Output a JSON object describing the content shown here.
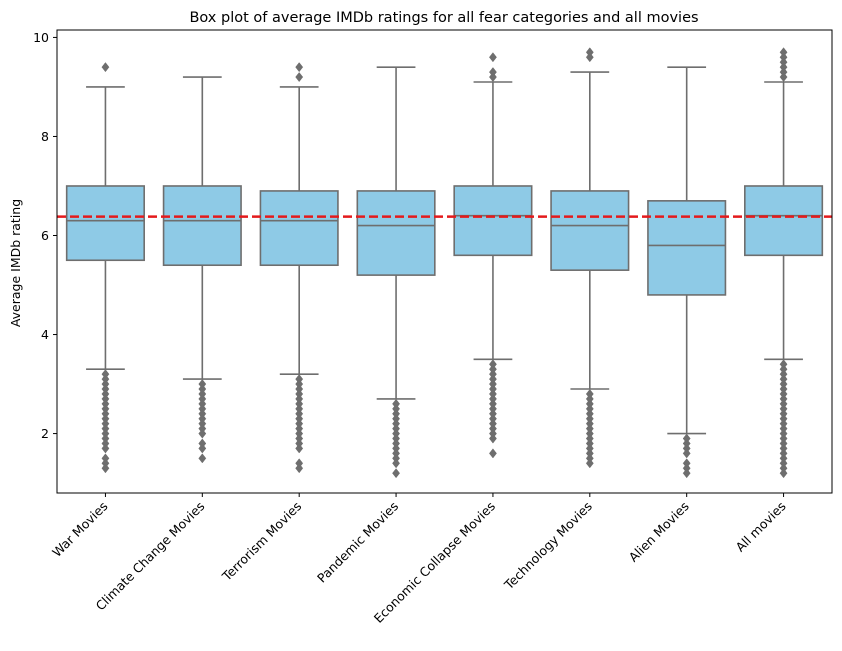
{
  "chart_data": {
    "type": "box",
    "title": "Box plot of average IMDb ratings for all fear categories and all movies",
    "xlabel": "",
    "ylabel": "Average IMDb rating",
    "ylim": [
      0.8,
      10.15
    ],
    "yticks": [
      2,
      4,
      6,
      8,
      10
    ],
    "grid": false,
    "legend": false,
    "box_color": "#8ecae6",
    "line_color": "#6e6e6e",
    "reference_line": {
      "y": 6.38,
      "color": "#e41a1c",
      "style": "dashed"
    },
    "categories": [
      "War Movies",
      "Climate Change Movies",
      "Terrorism Movies",
      "Pandemic Movies",
      "Economic Collapse Movies",
      "Technology Movies",
      "Alien Movies",
      "All movies"
    ],
    "boxes": [
      {
        "category": "War Movies",
        "whisker_low": 3.3,
        "q1": 5.5,
        "median": 6.3,
        "q3": 7.0,
        "whisker_high": 9.0,
        "outliers_low": [
          3.2,
          3.1,
          3.0,
          2.9,
          2.8,
          2.7,
          2.6,
          2.5,
          2.4,
          2.3,
          2.2,
          2.1,
          2.0,
          1.9,
          1.8,
          1.7,
          1.5,
          1.4,
          1.3
        ],
        "outliers_high": [
          9.4
        ]
      },
      {
        "category": "Climate Change Movies",
        "whisker_low": 3.1,
        "q1": 5.4,
        "median": 6.3,
        "q3": 7.0,
        "whisker_high": 9.2,
        "outliers_low": [
          3.0,
          2.9,
          2.8,
          2.7,
          2.6,
          2.5,
          2.4,
          2.3,
          2.2,
          2.1,
          2.0,
          1.8,
          1.7,
          1.5
        ],
        "outliers_high": []
      },
      {
        "category": "Terrorism Movies",
        "whisker_low": 3.2,
        "q1": 5.4,
        "median": 6.3,
        "q3": 6.9,
        "whisker_high": 9.0,
        "outliers_low": [
          3.1,
          3.0,
          2.9,
          2.8,
          2.7,
          2.6,
          2.5,
          2.4,
          2.3,
          2.2,
          2.1,
          2.0,
          1.9,
          1.8,
          1.7,
          1.4,
          1.3
        ],
        "outliers_high": [
          9.2,
          9.4
        ]
      },
      {
        "category": "Pandemic Movies",
        "whisker_low": 2.7,
        "q1": 5.2,
        "median": 6.2,
        "q3": 6.9,
        "whisker_high": 9.4,
        "outliers_low": [
          2.6,
          2.5,
          2.4,
          2.3,
          2.2,
          2.1,
          2.0,
          1.9,
          1.8,
          1.7,
          1.6,
          1.5,
          1.4,
          1.2
        ],
        "outliers_high": []
      },
      {
        "category": "Economic Collapse Movies",
        "whisker_low": 3.5,
        "q1": 5.6,
        "median": 6.4,
        "q3": 7.0,
        "whisker_high": 9.1,
        "outliers_low": [
          3.4,
          3.3,
          3.2,
          3.1,
          3.0,
          2.9,
          2.8,
          2.7,
          2.6,
          2.5,
          2.4,
          2.3,
          2.2,
          2.1,
          2.0,
          1.9,
          1.6
        ],
        "outliers_high": [
          9.2,
          9.3,
          9.6
        ]
      },
      {
        "category": "Technology Movies",
        "whisker_low": 2.9,
        "q1": 5.3,
        "median": 6.2,
        "q3": 6.9,
        "whisker_high": 9.3,
        "outliers_low": [
          2.8,
          2.7,
          2.6,
          2.5,
          2.4,
          2.3,
          2.2,
          2.1,
          2.0,
          1.9,
          1.8,
          1.7,
          1.6,
          1.5,
          1.4
        ],
        "outliers_high": [
          9.6,
          9.7
        ]
      },
      {
        "category": "Alien Movies",
        "whisker_low": 2.0,
        "q1": 4.8,
        "median": 5.8,
        "q3": 6.7,
        "whisker_high": 9.4,
        "outliers_low": [
          1.9,
          1.8,
          1.7,
          1.6,
          1.4,
          1.3,
          1.2
        ],
        "outliers_high": []
      },
      {
        "category": "All movies",
        "whisker_low": 3.5,
        "q1": 5.6,
        "median": 6.4,
        "q3": 7.0,
        "whisker_high": 9.1,
        "outliers_low": [
          3.4,
          3.3,
          3.2,
          3.1,
          3.0,
          2.9,
          2.8,
          2.7,
          2.6,
          2.5,
          2.4,
          2.3,
          2.2,
          2.1,
          2.0,
          1.9,
          1.8,
          1.7,
          1.6,
          1.5,
          1.4,
          1.3,
          1.2
        ],
        "outliers_high": [
          9.2,
          9.3,
          9.4,
          9.5,
          9.6,
          9.7
        ]
      }
    ]
  }
}
